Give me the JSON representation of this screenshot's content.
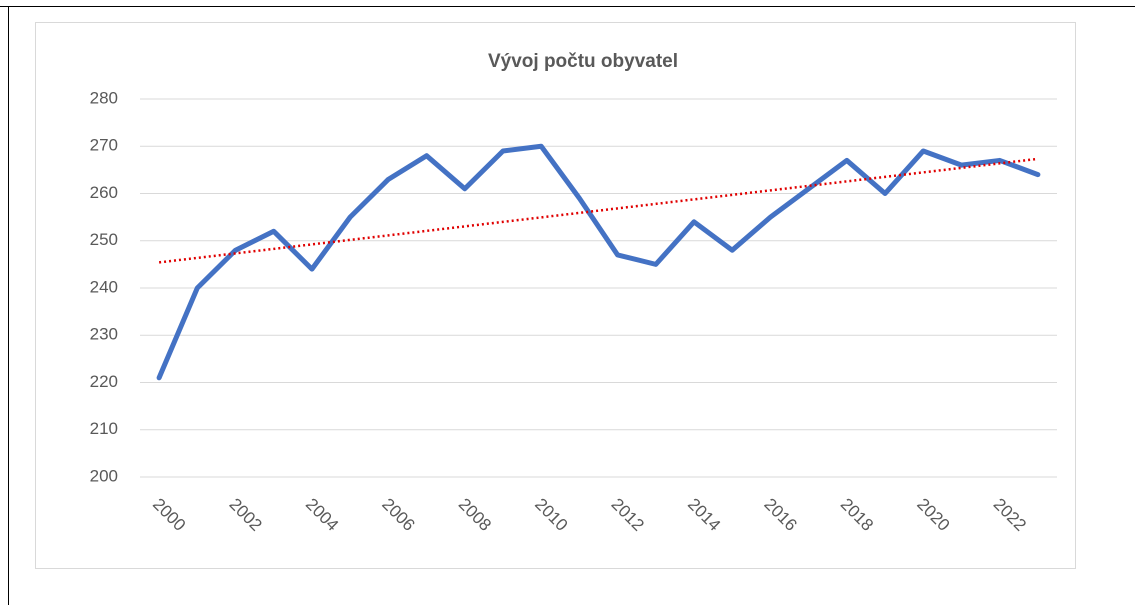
{
  "chart_data": {
    "type": "line",
    "title": "Vývoj počtu obyvatel",
    "categories": [
      "2000",
      null,
      "2002",
      null,
      "2004",
      null,
      "2006",
      null,
      "2008",
      null,
      "2010",
      null,
      "2012",
      null,
      "2014",
      null,
      "2016",
      null,
      "2018",
      null,
      "2020",
      null,
      "2022",
      null
    ],
    "values": [
      221,
      240,
      248,
      252,
      244,
      255,
      263,
      268,
      261,
      269,
      270,
      259,
      247,
      245,
      254,
      248,
      255,
      261,
      267,
      260,
      269,
      266,
      267,
      264
    ],
    "color": "#4472c4",
    "ylim": [
      200,
      280
    ],
    "yticks": [
      200,
      210,
      220,
      230,
      240,
      250,
      260,
      270,
      280
    ],
    "grid": true,
    "trendline": {
      "kind": "linear",
      "color": "#e00000",
      "style": "dotted"
    }
  }
}
